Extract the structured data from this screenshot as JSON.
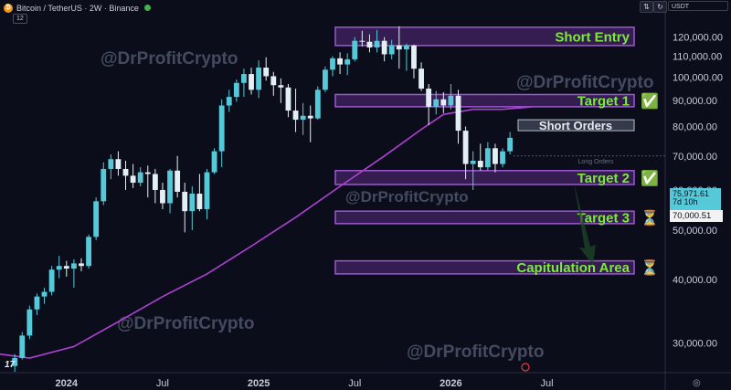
{
  "header": {
    "symbol": "Bitcoin / TetherUS · 2W · Binance",
    "interval_badge": "12",
    "currency": "USDT",
    "coin_glyph": "₿"
  },
  "watermark": "@DrProfitCrypto",
  "price_badge": {
    "price": "75,971.61",
    "countdown": "7d 10h",
    "level": "70,000.51"
  },
  "colors": {
    "background": "#0b0e1a",
    "candle_up": "#56c9d8",
    "candle_down": "#e4eef5",
    "zone_border": "#9b59d0",
    "zone_fill": "#3d1f5c",
    "label_green": "#7bea3c",
    "ma_line": "#b040d6",
    "watermark": "#444a60"
  },
  "chart_data": {
    "type": "candlestick",
    "yscale": "log",
    "ylim": [
      26200,
      134000
    ],
    "y_ticks": [
      30000,
      40000,
      50000,
      60000,
      70000,
      80000,
      90000,
      100000,
      110000,
      120000
    ],
    "y_tick_labels": [
      "30,000.00",
      "40,000.00",
      "50,000.00",
      "60,000.00",
      "70,000.00",
      "80,000.00",
      "90,000.00",
      "100,000.00",
      "110,000.00",
      "120,000.00"
    ],
    "x_tick_labels": [
      {
        "label": "2024",
        "bar": 7
      },
      {
        "label": "Jul",
        "bar": 20
      },
      {
        "label": "2025",
        "bar": 33
      },
      {
        "label": "Jul",
        "bar": 46
      },
      {
        "label": "2026",
        "bar": 59
      },
      {
        "label": "Jul",
        "bar": 72
      }
    ],
    "bar_range": [
      -2,
      88
    ],
    "candles": [
      {
        "o": 27000,
        "h": 28500,
        "l": 26300,
        "c": 28000
      },
      {
        "o": 28000,
        "h": 31500,
        "l": 27800,
        "c": 31000
      },
      {
        "o": 31000,
        "h": 35500,
        "l": 30500,
        "c": 34900
      },
      {
        "o": 34900,
        "h": 37500,
        "l": 34000,
        "c": 37000
      },
      {
        "o": 37000,
        "h": 38500,
        "l": 35800,
        "c": 37800
      },
      {
        "o": 37800,
        "h": 42500,
        "l": 37200,
        "c": 41800
      },
      {
        "o": 41800,
        "h": 44500,
        "l": 40200,
        "c": 42500
      },
      {
        "o": 42500,
        "h": 43500,
        "l": 40500,
        "c": 42000
      },
      {
        "o": 42000,
        "h": 43800,
        "l": 38500,
        "c": 43000
      },
      {
        "o": 43000,
        "h": 44000,
        "l": 41500,
        "c": 42500
      },
      {
        "o": 42500,
        "h": 49000,
        "l": 42000,
        "c": 48500
      },
      {
        "o": 48500,
        "h": 58000,
        "l": 47800,
        "c": 57000
      },
      {
        "o": 57000,
        "h": 68000,
        "l": 56000,
        "c": 66000
      },
      {
        "o": 66000,
        "h": 70500,
        "l": 63000,
        "c": 69000
      },
      {
        "o": 69000,
        "h": 71500,
        "l": 64000,
        "c": 66000
      },
      {
        "o": 66000,
        "h": 68500,
        "l": 60000,
        "c": 64000
      },
      {
        "o": 64000,
        "h": 67500,
        "l": 60500,
        "c": 62000
      },
      {
        "o": 62000,
        "h": 66500,
        "l": 61000,
        "c": 65000
      },
      {
        "o": 65000,
        "h": 67000,
        "l": 58000,
        "c": 64500
      },
      {
        "o": 64500,
        "h": 66000,
        "l": 56500,
        "c": 60000
      },
      {
        "o": 60000,
        "h": 62000,
        "l": 55000,
        "c": 56500
      },
      {
        "o": 56500,
        "h": 66000,
        "l": 54000,
        "c": 65500
      },
      {
        "o": 65500,
        "h": 70000,
        "l": 58000,
        "c": 59500
      },
      {
        "o": 59500,
        "h": 62000,
        "l": 49500,
        "c": 54500
      },
      {
        "o": 54500,
        "h": 61000,
        "l": 50000,
        "c": 59000
      },
      {
        "o": 59000,
        "h": 64500,
        "l": 54500,
        "c": 55000
      },
      {
        "o": 55000,
        "h": 66000,
        "l": 52500,
        "c": 65000
      },
      {
        "o": 65000,
        "h": 72500,
        "l": 64500,
        "c": 71500
      },
      {
        "o": 71500,
        "h": 90500,
        "l": 66500,
        "c": 88000
      },
      {
        "o": 88000,
        "h": 94500,
        "l": 85500,
        "c": 91500
      },
      {
        "o": 91500,
        "h": 99000,
        "l": 89500,
        "c": 97500
      },
      {
        "o": 97500,
        "h": 104000,
        "l": 91500,
        "c": 101500
      },
      {
        "o": 101500,
        "h": 104500,
        "l": 92500,
        "c": 94500
      },
      {
        "o": 94500,
        "h": 108000,
        "l": 91000,
        "c": 104500
      },
      {
        "o": 104500,
        "h": 109500,
        "l": 98500,
        "c": 100500
      },
      {
        "o": 100500,
        "h": 102500,
        "l": 92000,
        "c": 96500
      },
      {
        "o": 96500,
        "h": 99500,
        "l": 89000,
        "c": 95500
      },
      {
        "o": 95500,
        "h": 97000,
        "l": 83500,
        "c": 86000
      },
      {
        "o": 86000,
        "h": 95000,
        "l": 78000,
        "c": 82500
      },
      {
        "o": 82500,
        "h": 89000,
        "l": 77000,
        "c": 84000
      },
      {
        "o": 84000,
        "h": 88000,
        "l": 74500,
        "c": 83000
      },
      {
        "o": 83000,
        "h": 96000,
        "l": 82500,
        "c": 94500
      },
      {
        "o": 94500,
        "h": 105000,
        "l": 93500,
        "c": 103500
      },
      {
        "o": 103500,
        "h": 110000,
        "l": 100500,
        "c": 109000
      },
      {
        "o": 109000,
        "h": 112000,
        "l": 101500,
        "c": 106000
      },
      {
        "o": 106000,
        "h": 111500,
        "l": 101000,
        "c": 108500
      },
      {
        "o": 108500,
        "h": 120000,
        "l": 107500,
        "c": 118000
      },
      {
        "o": 118000,
        "h": 123500,
        "l": 115000,
        "c": 117500
      },
      {
        "o": 117500,
        "h": 121500,
        "l": 112000,
        "c": 114500
      },
      {
        "o": 114500,
        "h": 124000,
        "l": 112000,
        "c": 118000
      },
      {
        "o": 118000,
        "h": 120000,
        "l": 107500,
        "c": 111000
      },
      {
        "o": 111000,
        "h": 118500,
        "l": 108500,
        "c": 115500
      },
      {
        "o": 115500,
        "h": 126000,
        "l": 104000,
        "c": 113500
      },
      {
        "o": 113500,
        "h": 116500,
        "l": 103000,
        "c": 115500
      },
      {
        "o": 115500,
        "h": 116000,
        "l": 99500,
        "c": 104000
      },
      {
        "o": 104000,
        "h": 107000,
        "l": 94000,
        "c": 95000
      },
      {
        "o": 95000,
        "h": 97000,
        "l": 80500,
        "c": 87500
      },
      {
        "o": 87500,
        "h": 94000,
        "l": 84500,
        "c": 90500
      },
      {
        "o": 90500,
        "h": 93500,
        "l": 85000,
        "c": 88000
      },
      {
        "o": 88000,
        "h": 97000,
        "l": 86500,
        "c": 92000
      },
      {
        "o": 92000,
        "h": 94500,
        "l": 74000,
        "c": 78500
      },
      {
        "o": 78500,
        "h": 80000,
        "l": 63000,
        "c": 67500
      },
      {
        "o": 67500,
        "h": 71500,
        "l": 60000,
        "c": 68500
      },
      {
        "o": 68500,
        "h": 74000,
        "l": 65500,
        "c": 66500
      },
      {
        "o": 66500,
        "h": 74500,
        "l": 65500,
        "c": 72500
      },
      {
        "o": 72500,
        "h": 74000,
        "l": 65000,
        "c": 67500
      },
      {
        "o": 67500,
        "h": 72500,
        "l": 66500,
        "c": 71500
      },
      {
        "o": 71500,
        "h": 78000,
        "l": 70500,
        "c": 76000
      }
    ],
    "moving_average": [
      {
        "bar": -2,
        "v": 28500
      },
      {
        "bar": 2,
        "v": 28000
      },
      {
        "bar": 8,
        "v": 29500
      },
      {
        "bar": 14,
        "v": 33000
      },
      {
        "bar": 20,
        "v": 37000
      },
      {
        "bar": 26,
        "v": 41000
      },
      {
        "bar": 32,
        "v": 46500
      },
      {
        "bar": 38,
        "v": 53000
      },
      {
        "bar": 44,
        "v": 61000
      },
      {
        "bar": 50,
        "v": 70000
      },
      {
        "bar": 55,
        "v": 79000
      },
      {
        "bar": 58,
        "v": 84500
      },
      {
        "bar": 62,
        "v": 86500
      },
      {
        "bar": 66,
        "v": 86500
      },
      {
        "bar": 70,
        "v": 87500
      }
    ],
    "zones": [
      {
        "label": "Short Entry",
        "low": 115500,
        "high": 125500,
        "icon": ""
      },
      {
        "label": "Target 1",
        "low": 87500,
        "high": 92500,
        "icon": "✅"
      },
      {
        "label": "Target 2",
        "low": 61500,
        "high": 65500,
        "icon": "✅"
      },
      {
        "label": "Target 3",
        "low": 51500,
        "high": 54500,
        "icon": "⏳"
      },
      {
        "label": "Capitulation Area",
        "low": 41000,
        "high": 43500,
        "icon": "⏳"
      }
    ],
    "annotations": {
      "short_orders": {
        "text": "Short Orders",
        "low": 78500,
        "high": 82500
      },
      "long_orders": {
        "text": "Long Orders",
        "at": 68500
      },
      "current_level": 70000.51
    }
  }
}
